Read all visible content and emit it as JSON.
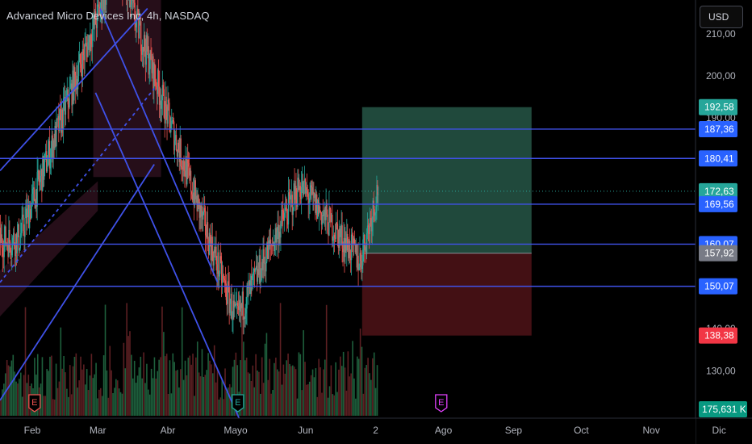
{
  "header": {
    "title": "Advanced Micro Devices Inc, 4h, NASDAQ",
    "currency": "USD"
  },
  "theme": {
    "background": "#000000",
    "up_color": "#26a69a",
    "down_color": "#ef5350",
    "line_color": "#3f51e8",
    "price_line_color": "#2962ff",
    "target_color": "#4caf8e",
    "stop_color": "#7a1e24",
    "volume_up": "#1e5f3c",
    "volume_down": "#5c1f22"
  },
  "chart_data": {
    "type": "candlestick",
    "title": "Advanced Micro Devices Inc, 4h, NASDAQ",
    "x_ticks": [
      "Feb",
      "Mar",
      "Abr",
      "Mayo",
      "Jun",
      "2",
      "Ago",
      "Sep",
      "Oct",
      "Nov",
      "Dic"
    ],
    "y_ticks": [
      130,
      140,
      150,
      160,
      170,
      180,
      190,
      200,
      210
    ],
    "ylim": [
      121.5,
      216.4
    ],
    "horizontal_levels": [
      187.36,
      180.41,
      169.56,
      160.07,
      150.07
    ],
    "price_tags": [
      {
        "label": "192,58",
        "value": 192.58,
        "bg": "#26a69a",
        "fg": "#ffffff"
      },
      {
        "label": "187,36",
        "value": 187.36,
        "bg": "#2962ff",
        "fg": "#ffffff"
      },
      {
        "label": "180,41",
        "value": 180.41,
        "bg": "#2962ff",
        "fg": "#ffffff"
      },
      {
        "label": "172,63",
        "value": 172.63,
        "bg": "#26a69a",
        "fg": "#ffffff"
      },
      {
        "label": "169,56",
        "value": 169.56,
        "bg": "#2962ff",
        "fg": "#ffffff"
      },
      {
        "label": "160,07",
        "value": 160.07,
        "bg": "#2962ff",
        "fg": "#ffffff"
      },
      {
        "label": "157,92",
        "value": 157.92,
        "bg": "#787b86",
        "fg": "#ffffff"
      },
      {
        "label": "150,07",
        "value": 150.07,
        "bg": "#2962ff",
        "fg": "#ffffff"
      },
      {
        "label": "138,38",
        "value": 138.38,
        "bg": "#f23645",
        "fg": "#ffffff"
      }
    ],
    "volume_tag": {
      "label": "175,631 K",
      "bg": "#089981",
      "fg": "#ffffff"
    },
    "current_price": 172.63,
    "position": {
      "target": 192.58,
      "entry": 157.92,
      "stop": 138.38,
      "start": "Jun 25",
      "end": "Sep 8"
    },
    "earnings_markers": [
      {
        "label": "E",
        "date": "Feb 1",
        "color": "#ef5350"
      },
      {
        "label": "E",
        "date": "May 1",
        "color": "#26a69a"
      },
      {
        "label": "E",
        "date": "Jul 30",
        "color": "#e040fb"
      }
    ],
    "key_prices": [
      {
        "date": "Jan 25",
        "low": 150.5,
        "high": 172.0
      },
      {
        "date": "Mar 8",
        "high": 227.0
      },
      {
        "date": "Apr 30",
        "low": 142.0
      },
      {
        "date": "May 28",
        "high": 174.0
      },
      {
        "date": "Jun 24",
        "low": 156.0
      },
      {
        "date": "Jul 2",
        "high": 174.0,
        "close": 172.63
      }
    ]
  }
}
